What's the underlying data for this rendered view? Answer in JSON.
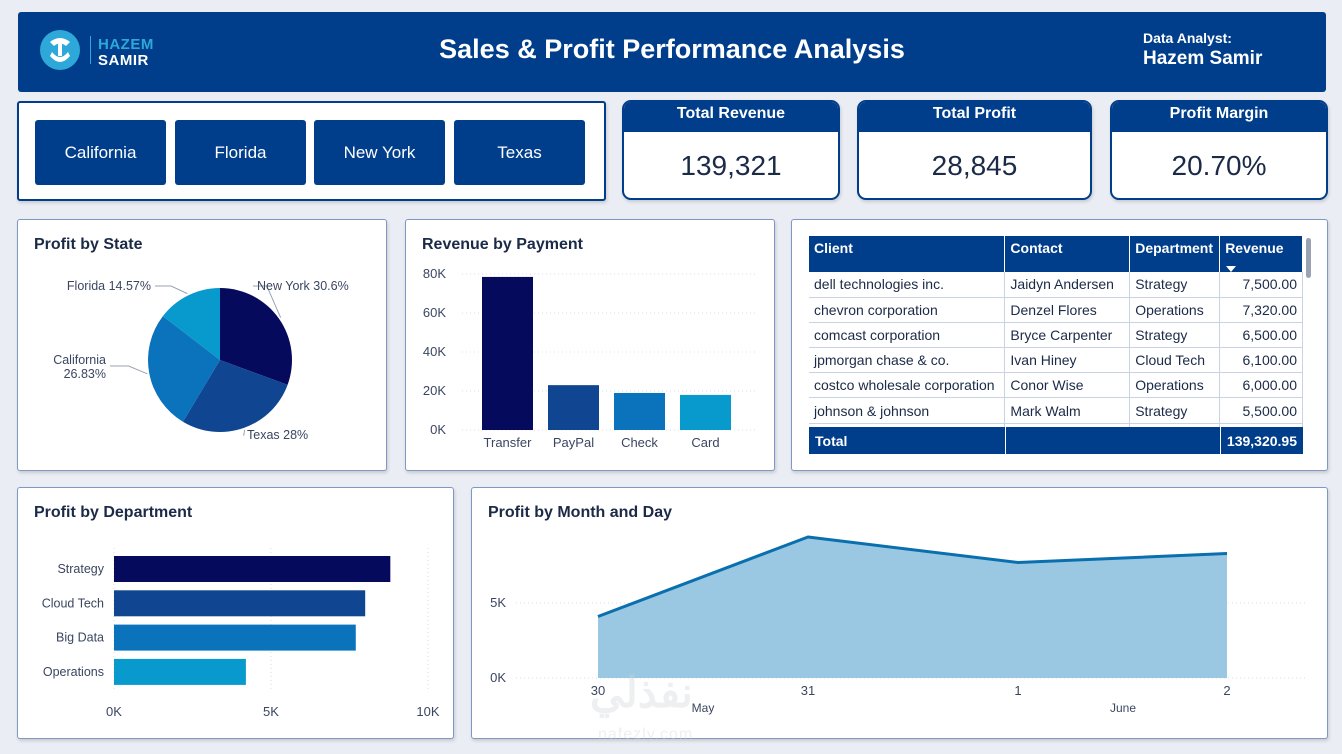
{
  "header": {
    "logo_line1": "HAZEM",
    "logo_line2": "SAMIR",
    "title": "Sales & Profit Performance Analysis",
    "analyst_label": "Data Analyst:",
    "analyst_name": "Hazem Samir"
  },
  "slicer": {
    "states": [
      "California",
      "Florida",
      "New York",
      "Texas"
    ]
  },
  "kpis": [
    {
      "label": "Total Revenue",
      "value": "139,321"
    },
    {
      "label": "Total Profit",
      "value": "28,845"
    },
    {
      "label": "Profit Margin",
      "value": "20.70%"
    }
  ],
  "panels": {
    "profit_by_state": "Profit by State",
    "revenue_by_payment": "Revenue by Payment",
    "profit_by_department": "Profit by Department",
    "profit_by_month_day": "Profit by Month and Day"
  },
  "table": {
    "headers": [
      "Client",
      "Contact",
      "Department",
      "Revenue"
    ],
    "rows": [
      [
        "dell technologies inc.",
        "Jaidyn Andersen",
        "Strategy",
        "7,500.00"
      ],
      [
        "chevron corporation",
        "Denzel Flores",
        "Operations",
        "7,320.00"
      ],
      [
        "comcast corporation",
        "Bryce Carpenter",
        "Strategy",
        "6,500.00"
      ],
      [
        "jpmorgan chase & co.",
        "Ivan Hiney",
        "Cloud Tech",
        "6,100.00"
      ],
      [
        "costco wholesale corporation",
        "Conor Wise",
        "Operations",
        "6,000.00"
      ],
      [
        "johnson & johnson",
        "Mark Walm",
        "Strategy",
        "5,500.00"
      ]
    ],
    "total_label": "Total",
    "total_value": "139,320.95"
  },
  "colors": {
    "navy": "#003e8b",
    "dark": "#050a5c",
    "mid": "#0f4591",
    "blue": "#0a73bb",
    "light": "#0899cd",
    "area_fill": "#9ac8e3",
    "area_line": "#0a6fae"
  },
  "chart_data": [
    {
      "type": "pie",
      "title": "Profit by State",
      "slices": [
        {
          "label": "New York 30.6%",
          "value": 30.6,
          "color": "#050a5c"
        },
        {
          "label": "Texas 28%",
          "value": 28.0,
          "color": "#0f4591"
        },
        {
          "label": "California 26.83%",
          "value": 26.83,
          "color": "#0a73bb"
        },
        {
          "label": "Florida 14.57%",
          "value": 14.57,
          "color": "#0899cd"
        }
      ]
    },
    {
      "type": "bar",
      "title": "Revenue by Payment",
      "categories": [
        "Transfer",
        "PayPal",
        "Check",
        "Card"
      ],
      "values": [
        78500,
        23000,
        19000,
        18000
      ],
      "colors": [
        "#050a5c",
        "#0f4591",
        "#0a73bb",
        "#0899cd"
      ],
      "yticks": [
        "0K",
        "20K",
        "40K",
        "60K",
        "80K"
      ],
      "ylim": [
        0,
        80000
      ]
    },
    {
      "type": "bar",
      "orientation": "horizontal",
      "title": "Profit by Department",
      "categories": [
        "Strategy",
        "Cloud Tech",
        "Big Data",
        "Operations"
      ],
      "values": [
        8800,
        8000,
        7700,
        4200
      ],
      "colors": [
        "#050a5c",
        "#0f4591",
        "#0a73bb",
        "#0899cd"
      ],
      "xticks": [
        "0K",
        "5K",
        "10K"
      ],
      "xlim": [
        0,
        10000
      ]
    },
    {
      "type": "area",
      "title": "Profit by Month and Day",
      "x": [
        "30",
        "31",
        "1",
        "2"
      ],
      "months": [
        "May",
        "June"
      ],
      "values": [
        4100,
        9400,
        7700,
        8300
      ],
      "yticks": [
        "0K",
        "5K"
      ],
      "ylim": [
        0,
        10000
      ]
    }
  ],
  "watermark": {
    "arabic": "نفذلي",
    "latin": "nafezly.com"
  }
}
